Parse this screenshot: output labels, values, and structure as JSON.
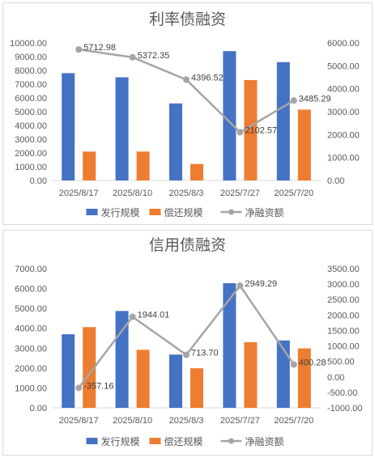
{
  "chart_data": [
    {
      "type": "bar",
      "title": "利率债融资",
      "categories": [
        "2025/8/17",
        "2025/8/10",
        "2025/8/3",
        "2025/7/27",
        "2025/7/20"
      ],
      "series": [
        {
          "name": "发行规模",
          "type": "bar",
          "axis": "left",
          "color": "#4472c4",
          "values": [
            7800,
            7500,
            5600,
            9400,
            8600
          ]
        },
        {
          "name": "偿还规模",
          "type": "bar",
          "axis": "left",
          "color": "#ed7d31",
          "values": [
            2100,
            2100,
            1200,
            7300,
            5150
          ]
        },
        {
          "name": "净融资额",
          "type": "line",
          "axis": "right",
          "color": "#a5a5a5",
          "values": [
            5712.98,
            5372.35,
            4396.52,
            2102.57,
            3485.29
          ],
          "labels": [
            "5712.98",
            "5372.35",
            "4396.52",
            "2102.57",
            "3485.29"
          ]
        }
      ],
      "y_left": {
        "min": 0,
        "max": 10000,
        "step": 1000,
        "ticks": [
          "0.00",
          "1000.00",
          "2000.00",
          "3000.00",
          "4000.00",
          "5000.00",
          "6000.00",
          "7000.00",
          "8000.00",
          "9000.00",
          "10000.00"
        ]
      },
      "y_right": {
        "min": 0,
        "max": 6000,
        "step": 1000,
        "ticks": [
          "0.00",
          "1000.00",
          "2000.00",
          "3000.00",
          "4000.00",
          "5000.00",
          "6000.00"
        ]
      },
      "grid": false,
      "legend": "bottom"
    },
    {
      "type": "bar",
      "title": "信用债融资",
      "categories": [
        "2025/8/17",
        "2025/8/10",
        "2025/8/3",
        "2025/7/27",
        "2025/7/20"
      ],
      "series": [
        {
          "name": "发行规模",
          "type": "bar",
          "axis": "left",
          "color": "#4472c4",
          "values": [
            3700,
            4870,
            2680,
            6270,
            3390
          ]
        },
        {
          "name": "偿还规模",
          "type": "bar",
          "axis": "left",
          "color": "#ed7d31",
          "values": [
            4060,
            2920,
            1990,
            3300,
            2990
          ]
        },
        {
          "name": "净融资额",
          "type": "line",
          "axis": "right",
          "color": "#a5a5a5",
          "values": [
            -357.16,
            1944.01,
            713.7,
            2949.29,
            400.28
          ],
          "labels": [
            "-357.16",
            "1944.01",
            "713.70",
            "2949.29",
            "400.28"
          ]
        }
      ],
      "y_left": {
        "min": 0,
        "max": 7000,
        "step": 1000,
        "ticks": [
          "0.00",
          "1000.00",
          "2000.00",
          "3000.00",
          "4000.00",
          "5000.00",
          "6000.00",
          "7000.00"
        ]
      },
      "y_right": {
        "min": -1000,
        "max": 3500,
        "step": 500,
        "ticks": [
          "-1000.00",
          "-500.00",
          "0.00",
          "500.00",
          "1000.00",
          "1500.00",
          "2000.00",
          "2500.00",
          "3000.00",
          "3500.00"
        ]
      },
      "grid": false,
      "legend": "bottom"
    }
  ]
}
